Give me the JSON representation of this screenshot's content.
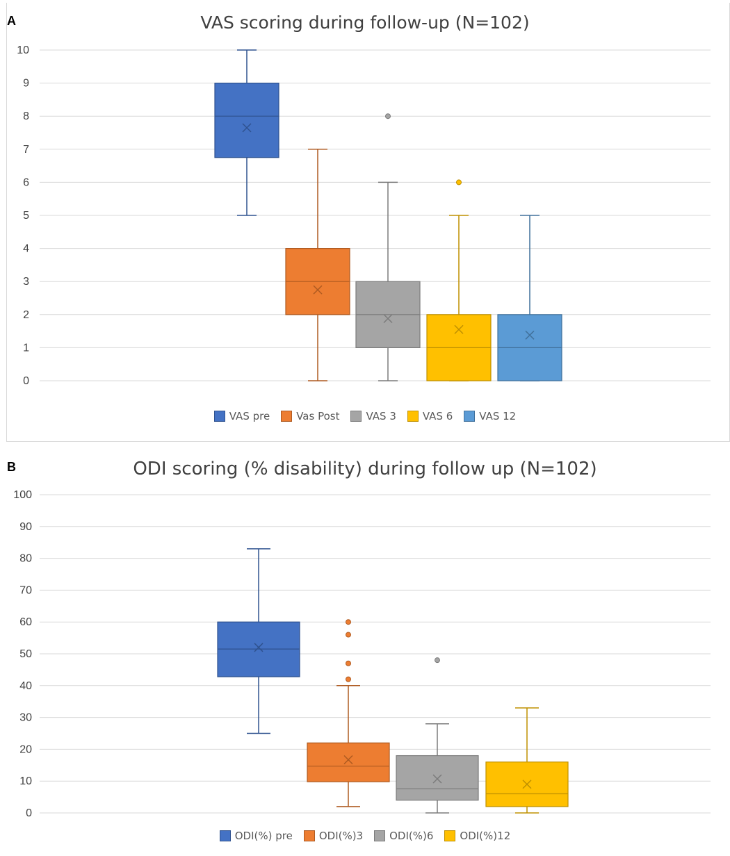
{
  "panels": {
    "a_letter": "A",
    "b_letter": "B"
  },
  "chart_data": [
    {
      "type": "box",
      "title": "VAS scoring during follow-up (N=102)",
      "xlabel": "",
      "ylabel": "",
      "ylim": [
        0,
        10
      ],
      "yticks": [
        0,
        1,
        2,
        3,
        4,
        5,
        6,
        7,
        8,
        9,
        10
      ],
      "grid": true,
      "legend_position": "bottom",
      "series": [
        {
          "name": "VAS pre",
          "color": "#4472C4",
          "edge": "#2F528F",
          "min": 5,
          "q1": 6.75,
          "median": 8,
          "q3": 9,
          "max": 10,
          "mean": 7.65,
          "outliers": []
        },
        {
          "name": "Vas Post",
          "color": "#ED7D31",
          "edge": "#AE5A21",
          "min": 0,
          "q1": 2,
          "median": 3,
          "q3": 4,
          "max": 7,
          "mean": 2.75,
          "outliers": []
        },
        {
          "name": "VAS 3",
          "color": "#A5A5A5",
          "edge": "#7B7B7B",
          "min": 0,
          "q1": 1,
          "median": 2,
          "q3": 3,
          "max": 6,
          "mean": 1.88,
          "outliers": [
            8
          ]
        },
        {
          "name": "VAS 6",
          "color": "#FFC000",
          "edge": "#BF9000",
          "min": 0,
          "q1": 0,
          "median": 1,
          "q3": 2,
          "max": 5,
          "mean": 1.55,
          "outliers": [
            6
          ]
        },
        {
          "name": "VAS 12",
          "color": "#5B9BD5",
          "edge": "#41719C",
          "min": 0,
          "q1": 0,
          "median": 1,
          "q3": 2,
          "max": 5,
          "mean": 1.38,
          "outliers": []
        }
      ]
    },
    {
      "type": "box",
      "title": "ODI scoring (% disability) during follow up (N=102)",
      "xlabel": "",
      "ylabel": "",
      "ylim": [
        0,
        100
      ],
      "yticks": [
        0,
        10,
        20,
        30,
        40,
        50,
        60,
        70,
        80,
        90,
        100
      ],
      "grid": true,
      "legend_position": "bottom",
      "series": [
        {
          "name": "ODI(%) pre",
          "color": "#4472C4",
          "edge": "#2F528F",
          "min": 25,
          "q1": 42.8,
          "median": 51.5,
          "q3": 60,
          "max": 83,
          "mean": 52,
          "outliers": []
        },
        {
          "name": "ODI(%)3",
          "color": "#ED7D31",
          "edge": "#AE5A21",
          "min": 2,
          "q1": 9.8,
          "median": 14.7,
          "q3": 22,
          "max": 40,
          "mean": 16.7,
          "outliers": [
            42,
            47,
            56,
            60
          ]
        },
        {
          "name": "ODI(%)6",
          "color": "#A5A5A5",
          "edge": "#7B7B7B",
          "min": 0,
          "q1": 4,
          "median": 7.6,
          "q3": 18,
          "max": 28,
          "mean": 10.7,
          "outliers": [
            48
          ]
        },
        {
          "name": "ODI(%)12",
          "color": "#FFC000",
          "edge": "#BF9000",
          "min": 0,
          "q1": 2,
          "median": 6,
          "q3": 16,
          "max": 33,
          "mean": 9,
          "outliers": []
        }
      ]
    }
  ]
}
